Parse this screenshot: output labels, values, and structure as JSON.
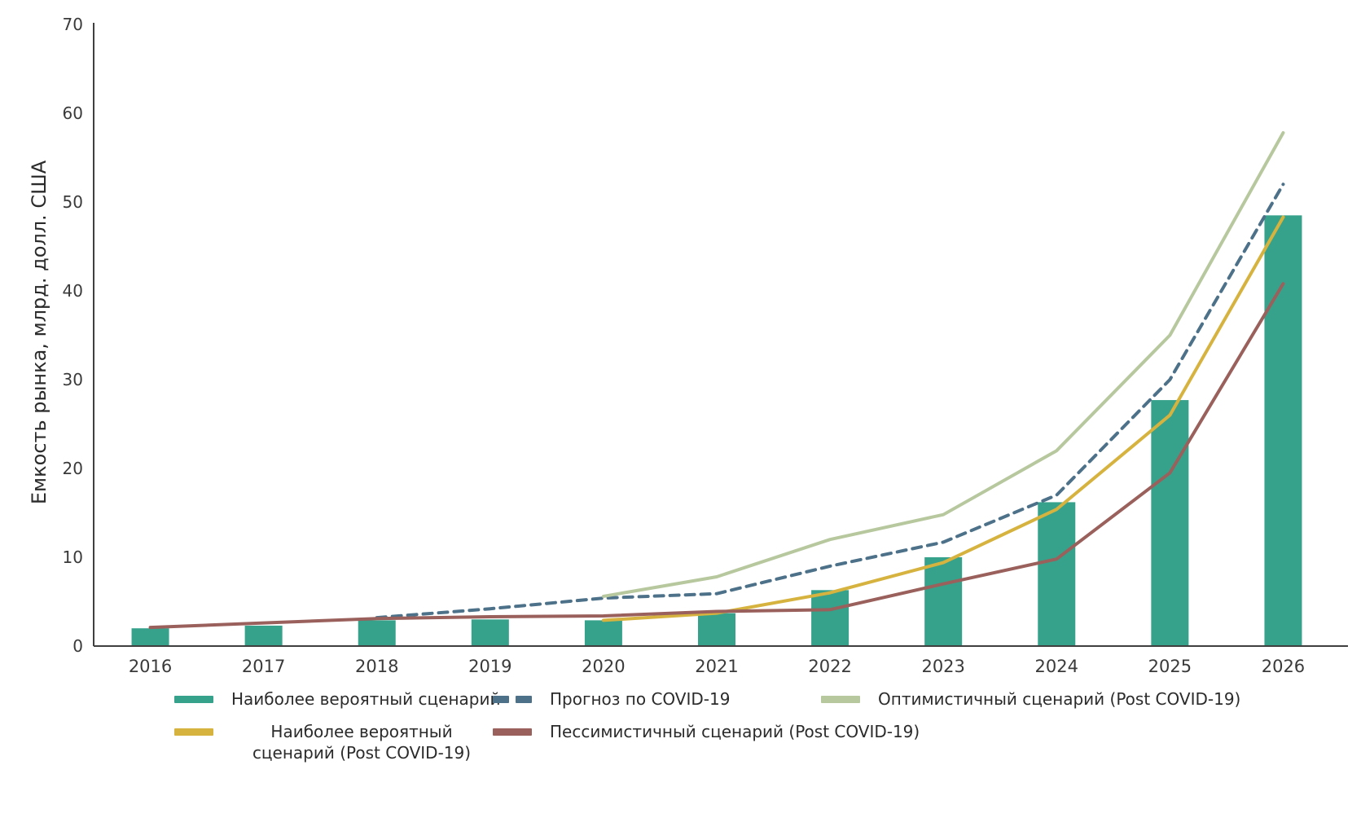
{
  "chart_data": {
    "type": "bar+line",
    "title": "",
    "xlabel": "",
    "ylabel": "Емкость рынка, млрд. долл. США",
    "ylim": [
      0,
      70
    ],
    "ytick_step": 10,
    "grid": false,
    "legend_position": "bottom",
    "categories": [
      "2016",
      "2017",
      "2018",
      "2019",
      "2020",
      "2021",
      "2022",
      "2023",
      "2024",
      "2025",
      "2026"
    ],
    "series": [
      {
        "name": "Наиболее вероятный сценарий",
        "type": "bar",
        "color": "#36A28B",
        "values": [
          2.0,
          2.3,
          2.9,
          3.0,
          2.9,
          3.7,
          6.3,
          10.0,
          16.2,
          27.7,
          48.5
        ]
      },
      {
        "name": "Прогноз по COVID-19",
        "type": "line",
        "dashed": true,
        "color": "#4C7189",
        "values": [
          null,
          null,
          3.2,
          4.2,
          5.4,
          5.9,
          9.0,
          11.7,
          17.0,
          30.0,
          52.0
        ]
      },
      {
        "name": "Оптимистичный сценарий (Post COVID-19)",
        "type": "line",
        "dashed": false,
        "color": "#B7C89E",
        "values": [
          null,
          null,
          null,
          null,
          5.6,
          7.8,
          12.0,
          14.8,
          22.0,
          35.0,
          57.8
        ]
      },
      {
        "name": "Наиболее вероятный сценарий (Post COVID-19)",
        "type": "line",
        "dashed": false,
        "color": "#D6B23F",
        "values": [
          null,
          null,
          null,
          null,
          2.9,
          3.7,
          6.0,
          9.4,
          15.4,
          26.0,
          48.3
        ]
      },
      {
        "name": "Пессимистичный сценарий (Post COVID-19)",
        "type": "line",
        "dashed": false,
        "color": "#9A605B",
        "values": [
          2.1,
          2.6,
          3.1,
          3.3,
          3.4,
          3.9,
          4.1,
          7.0,
          9.8,
          19.5,
          40.8
        ]
      }
    ]
  },
  "legend": {
    "items": [
      {
        "label": "Наиболее вероятный сценарий",
        "swatch": "bar",
        "color": "#36A28B"
      },
      {
        "label": "Прогноз по COVID-19",
        "swatch": "dashed",
        "color": "#4C7189"
      },
      {
        "label": "Оптимистичный сценарий (Post COVID-19)",
        "swatch": "line",
        "color": "#B7C89E"
      },
      {
        "label": "Наиболее вероятный сценарий (Post COVID-19)",
        "swatch": "line",
        "color": "#D6B23F"
      },
      {
        "label": "Пессимистичный сценарий (Post COVID-19)",
        "swatch": "line",
        "color": "#9A605B"
      }
    ]
  }
}
